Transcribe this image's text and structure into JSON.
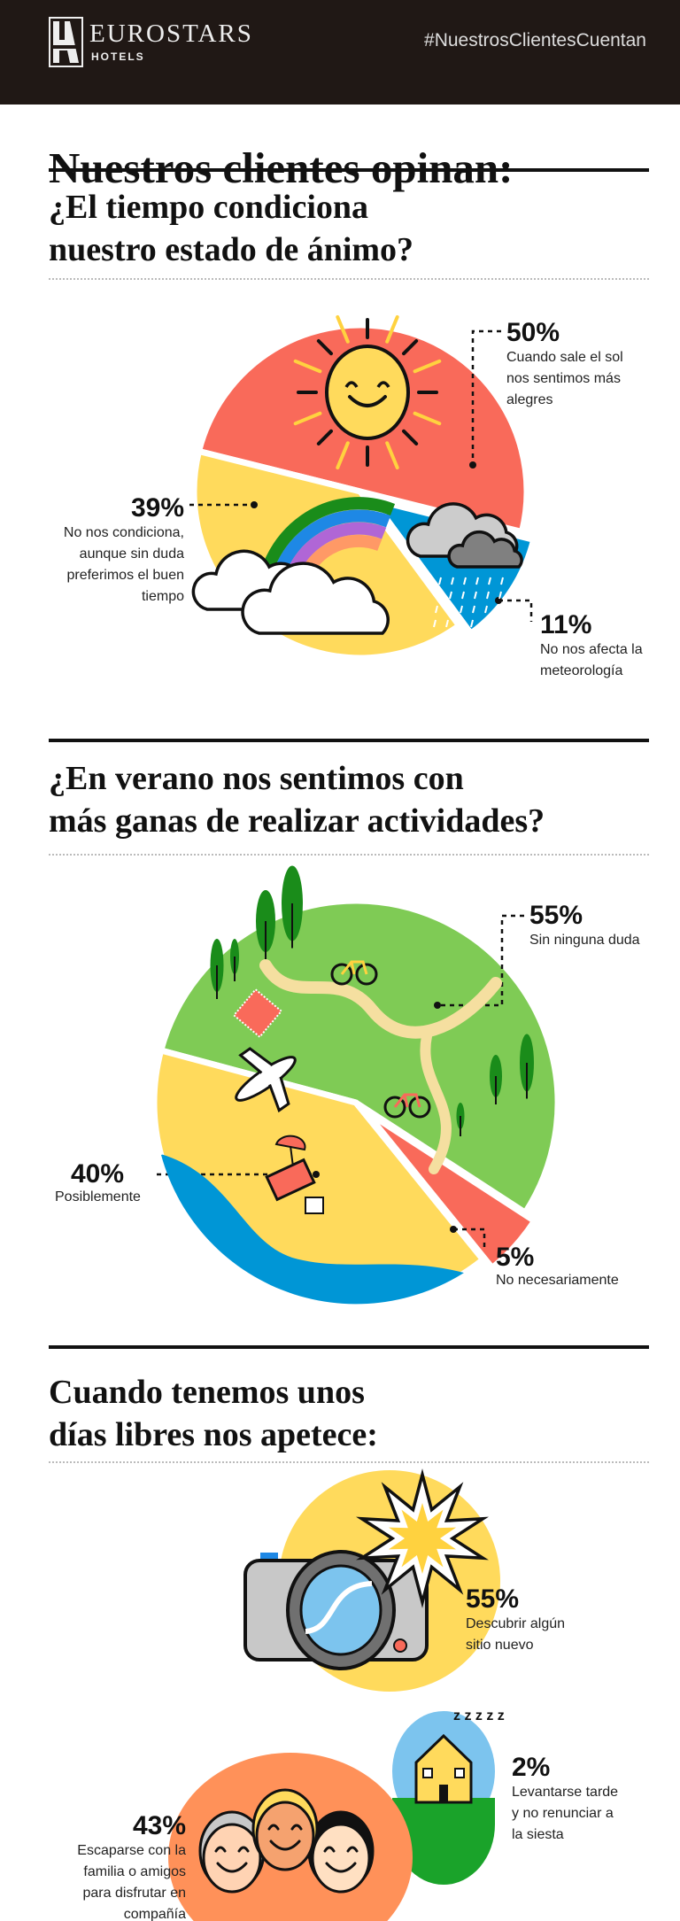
{
  "header": {
    "brand": "EUROSTARS",
    "brand_sub": "HOTELS",
    "hashtag": "#NuestrosClientesCuentan"
  },
  "title": "Nuestros clientes opinan:",
  "sections": [
    {
      "heading_lines": [
        "¿El tiempo condiciona",
        "nuestro estado de ánimo?"
      ]
    },
    {
      "heading_lines": [
        "¿En verano nos sentimos con",
        "más ganas de realizar actividades?"
      ]
    },
    {
      "heading_lines": [
        "Cuando tenemos unos",
        "días libres nos apetece:"
      ]
    }
  ],
  "chart_data": [
    {
      "type": "pie",
      "categories": [
        "Cuando sale el sol nos sentimos más alegres",
        "No nos afecta la meteorología",
        "No nos condiciona, aunque sin duda preferimos el buen tiempo"
      ],
      "values": [
        50,
        11,
        39
      ],
      "labels": [
        "50%",
        "11%",
        "39%"
      ],
      "descriptions": [
        "Cuando sale el sol\nnos sentimos más\nalegres",
        "No nos afecta la\nmeteorología",
        "No nos condiciona,\naunque sin duda\npreferimos el buen\ntiempo"
      ],
      "colors": [
        "#F96A5A",
        "#0096D6",
        "#FFDA5C"
      ],
      "exploded": [
        "No nos afecta la meteorología"
      ]
    },
    {
      "type": "pie",
      "categories": [
        "Sin ninguna duda",
        "No necesariamente",
        "Posiblemente"
      ],
      "values": [
        55,
        5,
        40
      ],
      "labels": [
        "55%",
        "5%",
        "40%"
      ],
      "descriptions": [
        "Sin ninguna duda",
        "No necesariamente",
        "Posiblemente"
      ],
      "colors": [
        "#7FCB55",
        "#F96A5A",
        "#FFDA5C"
      ],
      "exploded": [
        "No necesariamente"
      ]
    },
    {
      "type": "bubble",
      "categories": [
        "Descubrir algún sitio nuevo",
        "Levantarse tarde y no renunciar a la siesta",
        "Escaparse con la familia o amigos para disfrutar en compañía"
      ],
      "values": [
        55,
        2,
        43
      ],
      "labels": [
        "55%",
        "2%",
        "43%"
      ],
      "descriptions": [
        "Descubrir algún\nsitio nuevo",
        "Levantarse tarde\ny no renunciar a\nla siesta",
        "Escaparse con la\nfamilia o amigos\npara disfrutar en\ncompañía"
      ],
      "colors": [
        "#FFDA5C",
        "#7CC4EE",
        "#FF9159"
      ]
    }
  ]
}
